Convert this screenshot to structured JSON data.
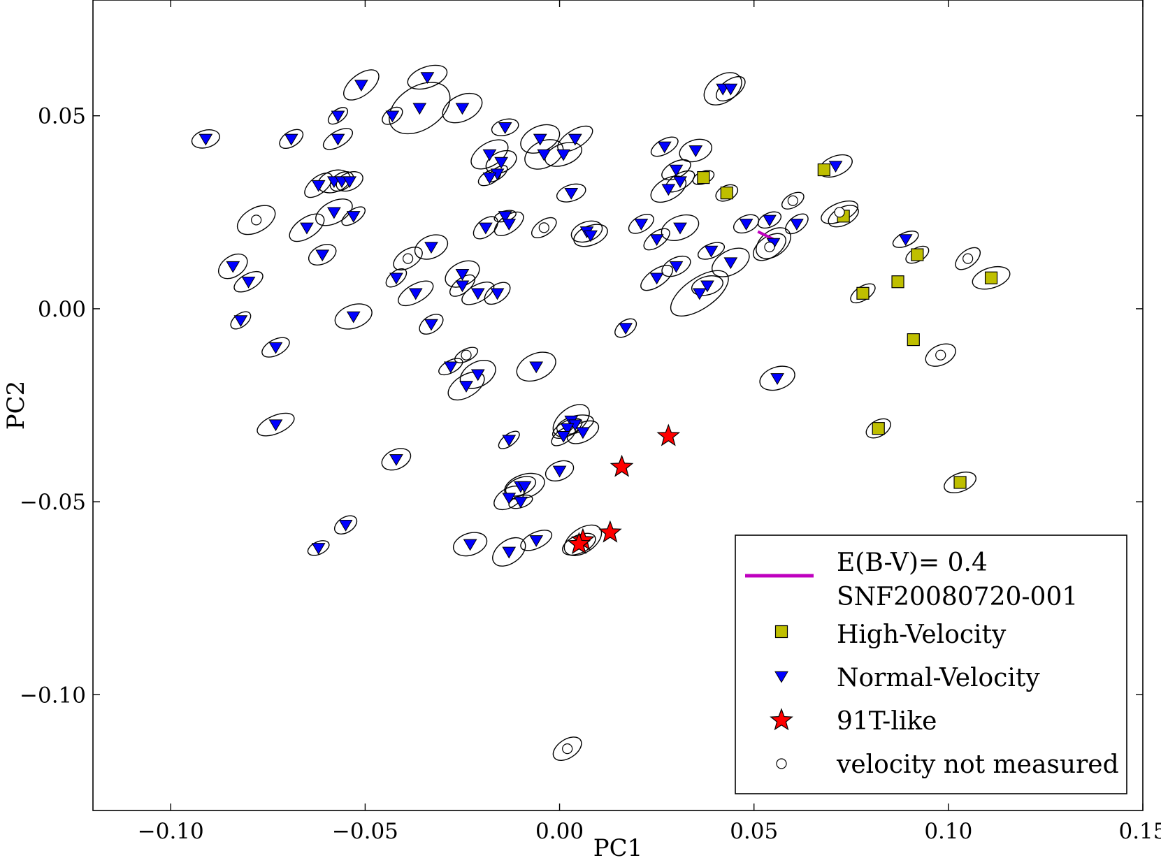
{
  "chart_data": {
    "type": "scatter",
    "title": "",
    "xlabel": "PC1",
    "ylabel": "PC2",
    "xlim": [
      -0.12,
      0.15
    ],
    "ylim": [
      -0.13,
      0.08
    ],
    "xticks": [
      -0.1,
      -0.05,
      0.0,
      0.05,
      0.1,
      0.15
    ],
    "xtick_labels": [
      "−0.10",
      "−0.05",
      "0.00",
      "0.05",
      "0.10",
      "0.15"
    ],
    "yticks": [
      0.05,
      0.0,
      -0.05,
      -0.1
    ],
    "ytick_labels": [
      "0.05",
      "0.00",
      "−0.05",
      "−0.10"
    ],
    "colors": {
      "high_velocity": "#bfbf00",
      "normal_velocity": "#0000ff",
      "t91_like": "#ff0000",
      "reddening": "#bf00bf",
      "ellipse": "#000000"
    },
    "legend": {
      "location": "lower right",
      "entries": [
        {
          "key": "reddening",
          "label_line1": "E(B-V)= 0.4",
          "label_line2": "SNF20080720-001"
        },
        {
          "key": "high",
          "label": "High-Velocity"
        },
        {
          "key": "normal",
          "label": "Normal-Velocity"
        },
        {
          "key": "t91",
          "label": "91T-like"
        },
        {
          "key": "none",
          "label": "velocity not measured"
        }
      ]
    },
    "reddening_vector": {
      "from": [
        0.051,
        0.02
      ],
      "to": [
        0.055,
        0.018
      ],
      "label": "E(B-V)= 0.4"
    },
    "series": [
      {
        "name": "High-Velocity",
        "marker": "square",
        "points": [
          [
            0.037,
            0.034
          ],
          [
            0.043,
            0.03
          ],
          [
            0.068,
            0.036
          ],
          [
            0.073,
            0.024
          ],
          [
            0.078,
            0.004
          ],
          [
            0.087,
            0.007
          ],
          [
            0.092,
            0.014
          ],
          [
            0.111,
            0.008
          ],
          [
            0.091,
            -0.008
          ],
          [
            0.082,
            -0.031
          ],
          [
            0.103,
            -0.045
          ]
        ]
      },
      {
        "name": "Normal-Velocity",
        "marker": "triangle_down",
        "points": [
          [
            -0.091,
            0.044
          ],
          [
            -0.069,
            0.044
          ],
          [
            -0.057,
            0.05
          ],
          [
            -0.057,
            0.044
          ],
          [
            -0.051,
            0.058
          ],
          [
            -0.043,
            0.05
          ],
          [
            -0.034,
            0.06
          ],
          [
            -0.036,
            0.052
          ],
          [
            -0.025,
            0.052
          ],
          [
            -0.014,
            0.047
          ],
          [
            -0.005,
            0.044
          ],
          [
            0.004,
            0.044
          ],
          [
            -0.018,
            0.04
          ],
          [
            -0.015,
            0.038
          ],
          [
            -0.004,
            0.04
          ],
          [
            0.001,
            0.04
          ],
          [
            -0.016,
            0.035
          ],
          [
            -0.018,
            0.034
          ],
          [
            0.003,
            0.03
          ],
          [
            0.027,
            0.042
          ],
          [
            0.035,
            0.041
          ],
          [
            0.042,
            0.057
          ],
          [
            0.044,
            0.057
          ],
          [
            0.071,
            0.037
          ],
          [
            -0.062,
            0.032
          ],
          [
            -0.058,
            0.033
          ],
          [
            -0.056,
            0.033
          ],
          [
            -0.054,
            0.033
          ],
          [
            -0.058,
            0.025
          ],
          [
            -0.053,
            0.024
          ],
          [
            -0.065,
            0.021
          ],
          [
            -0.061,
            0.014
          ],
          [
            -0.014,
            0.024
          ],
          [
            -0.013,
            0.022
          ],
          [
            -0.019,
            0.021
          ],
          [
            0.007,
            0.02
          ],
          [
            0.008,
            0.019
          ],
          [
            0.021,
            0.022
          ],
          [
            0.03,
            0.036
          ],
          [
            0.031,
            0.033
          ],
          [
            0.028,
            0.031
          ],
          [
            0.048,
            0.022
          ],
          [
            0.054,
            0.023
          ],
          [
            0.061,
            0.022
          ],
          [
            0.025,
            0.018
          ],
          [
            0.031,
            0.021
          ],
          [
            0.039,
            0.015
          ],
          [
            0.044,
            0.012
          ],
          [
            0.03,
            0.011
          ],
          [
            0.025,
            0.008
          ],
          [
            0.036,
            0.004
          ],
          [
            0.038,
            0.006
          ],
          [
            0.055,
            0.017
          ],
          [
            0.089,
            0.018
          ],
          [
            -0.084,
            0.011
          ],
          [
            -0.08,
            0.007
          ],
          [
            -0.033,
            0.016
          ],
          [
            -0.042,
            0.008
          ],
          [
            -0.037,
            0.004
          ],
          [
            -0.025,
            0.009
          ],
          [
            -0.025,
            0.006
          ],
          [
            -0.021,
            0.004
          ],
          [
            -0.016,
            0.004
          ],
          [
            -0.082,
            -0.003
          ],
          [
            -0.053,
            -0.002
          ],
          [
            -0.033,
            -0.004
          ],
          [
            0.017,
            -0.005
          ],
          [
            -0.073,
            -0.01
          ],
          [
            -0.028,
            -0.015
          ],
          [
            -0.021,
            -0.017
          ],
          [
            -0.006,
            -0.015
          ],
          [
            -0.024,
            -0.02
          ],
          [
            0.056,
            -0.018
          ],
          [
            -0.073,
            -0.03
          ],
          [
            0.003,
            -0.029
          ],
          [
            0.004,
            -0.03
          ],
          [
            0.002,
            -0.031
          ],
          [
            0.006,
            -0.032
          ],
          [
            0.001,
            -0.033
          ],
          [
            -0.013,
            -0.034
          ],
          [
            -0.042,
            -0.039
          ],
          [
            0.0,
            -0.042
          ],
          [
            -0.01,
            -0.046
          ],
          [
            -0.009,
            -0.046
          ],
          [
            -0.013,
            -0.049
          ],
          [
            -0.01,
            -0.05
          ],
          [
            -0.055,
            -0.056
          ],
          [
            -0.062,
            -0.062
          ],
          [
            -0.023,
            -0.061
          ],
          [
            -0.013,
            -0.063
          ],
          [
            -0.006,
            -0.06
          ]
        ]
      },
      {
        "name": "91T-like",
        "marker": "star",
        "points": [
          [
            0.028,
            -0.033
          ],
          [
            0.016,
            -0.041
          ],
          [
            0.013,
            -0.058
          ],
          [
            0.006,
            -0.06
          ],
          [
            0.005,
            -0.061
          ]
        ]
      },
      {
        "name": "velocity not measured",
        "marker": "circle",
        "points": [
          [
            -0.078,
            0.023
          ],
          [
            -0.039,
            0.013
          ],
          [
            -0.004,
            0.021
          ],
          [
            0.06,
            0.028
          ],
          [
            0.054,
            0.016
          ],
          [
            0.105,
            0.013
          ],
          [
            -0.024,
            -0.012
          ],
          [
            0.098,
            -0.012
          ],
          [
            0.002,
            -0.114
          ],
          [
            0.072,
            0.025
          ]
        ]
      }
    ]
  }
}
